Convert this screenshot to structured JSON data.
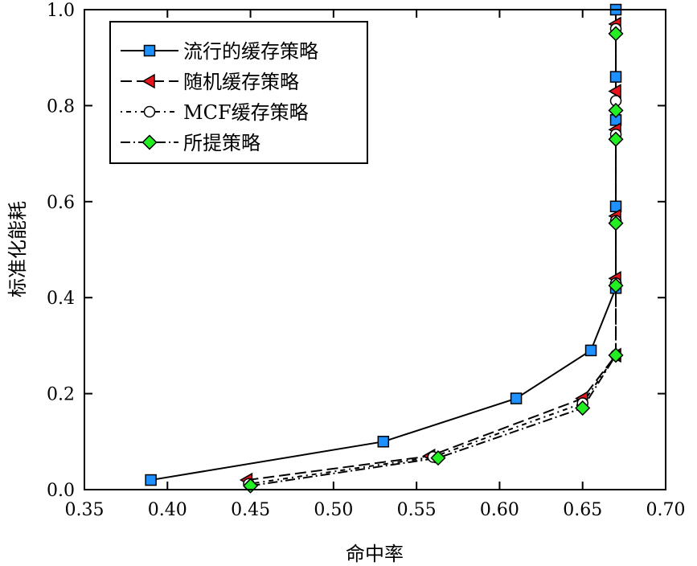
{
  "chart_data": {
    "type": "line",
    "title": "",
    "xlabel": "命中率",
    "ylabel": "标准化能耗",
    "xlim": [
      0.35,
      0.7
    ],
    "ylim": [
      0.0,
      1.0
    ],
    "xticks": [
      "0.35",
      "0.40",
      "0.45",
      "0.50",
      "0.55",
      "0.60",
      "0.65",
      "0.70"
    ],
    "yticks": [
      "0.0",
      "0.2",
      "0.4",
      "0.6",
      "0.8",
      "1.0"
    ],
    "grid": false,
    "legend_position": "top-left",
    "series": [
      {
        "name": "流行的缓存策略",
        "marker": "square",
        "line": "solid",
        "color": "#1e90ff",
        "points": [
          [
            0.39,
            0.02
          ],
          [
            0.53,
            0.1
          ],
          [
            0.61,
            0.19
          ],
          [
            0.655,
            0.29
          ],
          [
            0.67,
            0.42
          ],
          [
            0.67,
            0.59
          ],
          [
            0.67,
            0.77
          ],
          [
            0.67,
            0.86
          ],
          [
            0.67,
            1.0
          ]
        ]
      },
      {
        "name": "随机缓存策略",
        "marker": "triangle-left",
        "line": "dashed",
        "color": "#e8141c",
        "points": [
          [
            0.448,
            0.02
          ],
          [
            0.558,
            0.07
          ],
          [
            0.65,
            0.19
          ],
          [
            0.67,
            0.28
          ],
          [
            0.67,
            0.44
          ],
          [
            0.67,
            0.57
          ],
          [
            0.67,
            0.75
          ],
          [
            0.67,
            0.83
          ],
          [
            0.67,
            0.97
          ]
        ]
      },
      {
        "name": "MCF缓存策略",
        "marker": "circle",
        "line": "dotted",
        "color": "#ffffff",
        "points": [
          [
            0.449,
            0.012
          ],
          [
            0.56,
            0.068
          ],
          [
            0.65,
            0.18
          ],
          [
            0.67,
            0.28
          ],
          [
            0.67,
            0.43
          ],
          [
            0.67,
            0.56
          ],
          [
            0.67,
            0.74
          ],
          [
            0.67,
            0.81
          ],
          [
            0.67,
            0.96
          ]
        ]
      },
      {
        "name": "所提策略",
        "marker": "diamond",
        "line": "dashdot",
        "color": "#22ee22",
        "points": [
          [
            0.45,
            0.008
          ],
          [
            0.563,
            0.066
          ],
          [
            0.65,
            0.17
          ],
          [
            0.67,
            0.28
          ],
          [
            0.67,
            0.425
          ],
          [
            0.67,
            0.555
          ],
          [
            0.67,
            0.73
          ],
          [
            0.67,
            0.79
          ],
          [
            0.67,
            0.95
          ]
        ]
      }
    ]
  }
}
